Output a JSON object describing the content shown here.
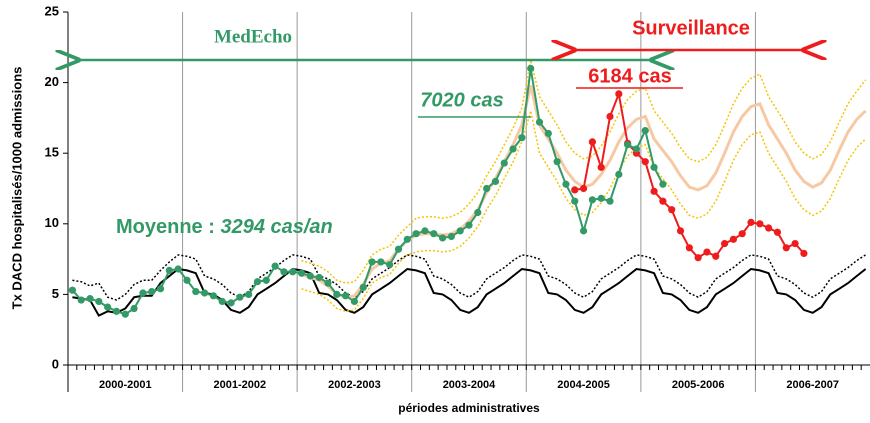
{
  "chart_data": {
    "type": "line",
    "ylabel": "Tx DACD hospitalisés/1000 admissions",
    "xlabel": "périodes administratives",
    "categories": [
      null,
      null,
      null,
      null,
      null,
      null,
      "2000-2001",
      null,
      null,
      null,
      null,
      null,
      null,
      null,
      null,
      null,
      null,
      null,
      null,
      "2001-2002",
      null,
      null,
      null,
      null,
      null,
      null,
      null,
      null,
      null,
      null,
      null,
      null,
      "2002-2003",
      null,
      null,
      null,
      null,
      null,
      null,
      null,
      null,
      null,
      null,
      null,
      null,
      "2003-2004",
      null,
      null,
      null,
      null,
      null,
      null,
      null,
      null,
      null,
      null,
      null,
      null,
      "2004-2005",
      null,
      null,
      null,
      null,
      null,
      null,
      null,
      null,
      null,
      null,
      null,
      null,
      "2005-2006",
      null,
      null,
      null,
      null,
      null,
      null,
      null,
      null,
      null,
      null,
      null,
      null,
      "2006-2007",
      null,
      null,
      null,
      null,
      null,
      null
    ],
    "ylim": [
      0,
      25
    ],
    "yticks": [
      0,
      5,
      10,
      15,
      20,
      25
    ],
    "annotations": {
      "medecho": "MedEcho",
      "surveillance": "Surveillance",
      "cas_surv": "6184 cas",
      "cas_med": "7020 cas",
      "moyenne": "Moyenne : ",
      "moyenne_val": "3294 cas/an"
    },
    "series": [
      {
        "color": "#000000",
        "style": "dotted",
        "values": [
          6.0,
          5.9,
          5.6,
          5.8,
          4.8,
          4.6,
          5.0,
          5.7,
          6.0,
          6.0,
          6.7,
          7.3,
          7.8,
          7.7,
          7.5,
          6.3,
          6.1,
          5.7,
          5.1,
          4.8,
          5.2,
          6.1,
          6.5,
          6.9,
          7.4,
          7.8,
          7.7,
          7.5,
          6.3,
          6.1,
          5.7,
          5.1,
          4.8,
          5.2,
          6.1,
          6.5,
          6.9,
          7.4,
          7.8,
          7.7,
          7.5,
          6.3,
          6.1,
          5.7,
          5.1,
          4.8,
          5.2,
          6.1,
          6.5,
          6.9,
          7.4,
          7.8,
          7.7,
          7.5,
          6.3,
          6.1,
          5.7,
          5.1,
          4.8,
          5.2,
          6.1,
          6.5,
          6.9,
          7.4,
          7.8,
          7.7,
          7.5,
          6.3,
          6.1,
          5.7,
          5.1,
          4.8,
          5.2,
          6.1,
          6.5,
          6.9,
          7.4,
          7.8,
          7.7,
          7.5,
          6.3,
          6.1,
          5.7,
          5.1,
          4.8,
          5.2,
          6.1,
          6.5,
          6.9,
          7.4,
          7.8
        ]
      },
      {
        "color": "#000000",
        "style": "solid",
        "values": [
          4.8,
          4.7,
          4.6,
          3.5,
          3.8,
          3.7,
          4.0,
          4.8,
          4.9,
          4.9,
          5.8,
          6.3,
          6.8,
          6.7,
          6.5,
          5.1,
          5.0,
          4.6,
          3.9,
          3.7,
          4.1,
          5.0,
          5.4,
          5.8,
          6.3,
          6.8,
          6.7,
          6.5,
          5.1,
          5.0,
          4.6,
          3.9,
          3.7,
          4.1,
          5.0,
          5.4,
          5.8,
          6.3,
          6.8,
          6.7,
          6.5,
          5.1,
          5.0,
          4.6,
          3.9,
          3.7,
          4.1,
          5.0,
          5.4,
          5.8,
          6.3,
          6.8,
          6.7,
          6.5,
          5.1,
          5.0,
          4.6,
          3.9,
          3.7,
          4.1,
          5.0,
          5.4,
          5.8,
          6.3,
          6.8,
          6.7,
          6.5,
          5.1,
          5.0,
          4.6,
          3.9,
          3.7,
          4.1,
          5.0,
          5.4,
          5.8,
          6.3,
          6.8,
          6.7,
          6.5,
          5.1,
          5.0,
          4.6,
          3.9,
          3.7,
          4.1,
          5.0,
          5.4,
          5.8,
          6.3,
          6.8
        ]
      },
      {
        "color": "#f5c400",
        "style": "dotted",
        "values": [
          null,
          null,
          null,
          null,
          null,
          null,
          null,
          null,
          null,
          null,
          null,
          null,
          null,
          null,
          null,
          null,
          null,
          null,
          null,
          null,
          null,
          null,
          null,
          null,
          null,
          null,
          7.4,
          7.2,
          7.0,
          6.6,
          6.0,
          5.8,
          5.9,
          6.7,
          7.8,
          8.2,
          8.4,
          9.2,
          9.8,
          10.4,
          10.5,
          10.5,
          10.4,
          10.5,
          10.8,
          11.4,
          12.2,
          13.4,
          14.4,
          15.6,
          16.8,
          18.2,
          21.6,
          19.0,
          18.0,
          17.0,
          15.8,
          15.0,
          14.6,
          14.8,
          15.5,
          16.5,
          17.8,
          18.8,
          19.4,
          19.6,
          18.0,
          17.2,
          16.4,
          15.4,
          14.6,
          14.4,
          14.7,
          15.6,
          17.0,
          18.5,
          19.6,
          20.3,
          20.6,
          19.0,
          18.0,
          17.0,
          15.8,
          15.0,
          14.6,
          14.9,
          15.8,
          17.2,
          18.5,
          19.4,
          20.2
        ]
      },
      {
        "color": "#f5c400",
        "style": "dotted",
        "values": [
          null,
          null,
          null,
          null,
          null,
          null,
          null,
          null,
          null,
          null,
          null,
          null,
          null,
          null,
          null,
          null,
          null,
          null,
          null,
          null,
          null,
          null,
          null,
          null,
          null,
          null,
          5.4,
          5.2,
          5.0,
          4.6,
          4.0,
          3.8,
          3.9,
          4.7,
          5.8,
          6.2,
          6.4,
          7.2,
          7.8,
          8.0,
          8.1,
          8.1,
          8.0,
          8.1,
          8.4,
          9.0,
          9.8,
          11.0,
          12.0,
          13.2,
          14.4,
          15.8,
          18.0,
          15.0,
          14.0,
          13.0,
          11.8,
          11.0,
          10.6,
          10.8,
          11.5,
          12.5,
          13.8,
          14.8,
          15.4,
          15.6,
          14.0,
          13.2,
          12.4,
          11.4,
          10.6,
          10.4,
          10.7,
          11.6,
          13.0,
          14.5,
          15.6,
          16.3,
          16.5,
          15.0,
          14.0,
          13.0,
          11.8,
          11.0,
          10.6,
          10.9,
          11.8,
          13.2,
          14.5,
          15.4,
          16.0
        ]
      },
      {
        "color": "#f7c9a3",
        "style": "thick",
        "values": [
          null,
          null,
          null,
          null,
          null,
          null,
          null,
          null,
          null,
          null,
          null,
          null,
          null,
          null,
          null,
          null,
          null,
          null,
          null,
          null,
          null,
          null,
          null,
          null,
          null,
          null,
          6.4,
          6.2,
          6.0,
          5.6,
          5.0,
          4.8,
          4.9,
          5.7,
          6.8,
          7.2,
          7.4,
          8.2,
          8.8,
          9.2,
          9.3,
          9.3,
          9.2,
          9.3,
          9.6,
          10.2,
          11.0,
          12.2,
          13.2,
          14.4,
          15.6,
          17.0,
          19.8,
          17.0,
          16.0,
          15.0,
          13.8,
          13.0,
          12.6,
          12.8,
          13.5,
          14.5,
          15.8,
          16.8,
          17.4,
          17.6,
          16.0,
          15.2,
          14.4,
          13.4,
          12.6,
          12.4,
          12.7,
          13.6,
          15.0,
          16.5,
          17.6,
          18.3,
          18.5,
          17.0,
          16.0,
          15.0,
          13.8,
          13.0,
          12.6,
          12.9,
          13.8,
          15.2,
          16.5,
          17.4,
          18.0
        ]
      },
      {
        "color": "#ee1c1c",
        "style": "markers",
        "values": [
          null,
          null,
          null,
          null,
          null,
          null,
          null,
          null,
          null,
          null,
          null,
          null,
          null,
          null,
          null,
          null,
          null,
          null,
          null,
          null,
          null,
          null,
          null,
          null,
          null,
          null,
          null,
          null,
          null,
          null,
          null,
          null,
          null,
          null,
          null,
          null,
          null,
          null,
          null,
          null,
          null,
          null,
          null,
          null,
          null,
          null,
          null,
          null,
          null,
          null,
          null,
          null,
          null,
          null,
          null,
          null,
          null,
          12.4,
          12.5,
          15.8,
          14.0,
          17.6,
          19.2,
          15.7,
          15.0,
          14.4,
          12.3,
          11.6,
          11.0,
          9.5,
          8.3,
          7.6,
          8.0,
          7.7,
          8.6,
          8.9,
          9.3,
          10.1,
          10.0,
          9.7,
          9.4,
          8.3,
          8.6,
          7.9,
          null,
          null,
          null,
          null,
          null,
          null,
          null
        ]
      },
      {
        "color": "#339966",
        "style": "markers",
        "values": [
          5.3,
          4.6,
          4.7,
          4.5,
          4.1,
          3.8,
          3.6,
          4.0,
          5.1,
          5.2,
          5.4,
          6.7,
          6.8,
          6.0,
          5.2,
          5.1,
          4.9,
          4.5,
          4.4,
          4.8,
          5.0,
          5.9,
          6.0,
          7.0,
          6.6,
          6.6,
          6.5,
          6.3,
          6.2,
          5.8,
          5.0,
          4.9,
          4.5,
          5.5,
          7.3,
          7.3,
          7.1,
          8.2,
          8.9,
          9.3,
          9.5,
          9.3,
          9.0,
          9.1,
          9.5,
          9.9,
          10.8,
          12.5,
          13.0,
          14.3,
          15.3,
          16.1,
          21.0,
          17.2,
          16.4,
          14.4,
          12.8,
          11.6,
          9.5,
          11.7,
          11.8,
          11.6,
          13.5,
          15.6,
          15.3,
          16.6,
          14.0,
          12.8,
          null,
          null,
          null,
          null,
          null,
          null,
          null,
          null,
          null,
          null,
          null,
          null,
          null,
          null,
          null,
          null,
          null,
          null,
          null,
          null,
          null,
          null,
          null
        ]
      }
    ]
  }
}
